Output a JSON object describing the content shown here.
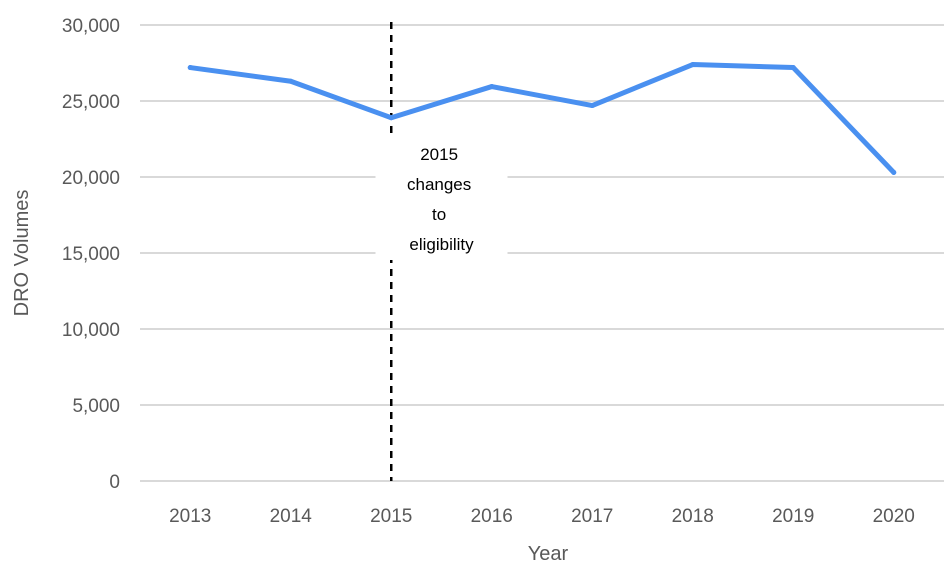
{
  "chart_data": {
    "type": "line",
    "x": [
      "2013",
      "2014",
      "2015",
      "2016",
      "2017",
      "2018",
      "2019",
      "2020"
    ],
    "series": [
      {
        "values": [
          27200,
          26300,
          23900,
          25950,
          24700,
          27400,
          27200,
          20300
        ]
      }
    ],
    "xlabel": "Year",
    "ylabel": "DRO Volumes",
    "ylim": [
      0,
      30000
    ],
    "yticks": [
      0,
      5000,
      10000,
      15000,
      20000,
      25000,
      30000
    ],
    "ytick_labels": [
      "0",
      "5,000",
      "10,000",
      "15,000",
      "20,000",
      "25,000",
      "30,000"
    ],
    "grid": true,
    "line_color": "#4a90f0",
    "reference_line": {
      "x": "2015",
      "style": "dashed",
      "color": "#000000"
    },
    "annotation": {
      "lines": [
        "2015",
        "changes",
        "to",
        "eligibility"
      ]
    }
  }
}
